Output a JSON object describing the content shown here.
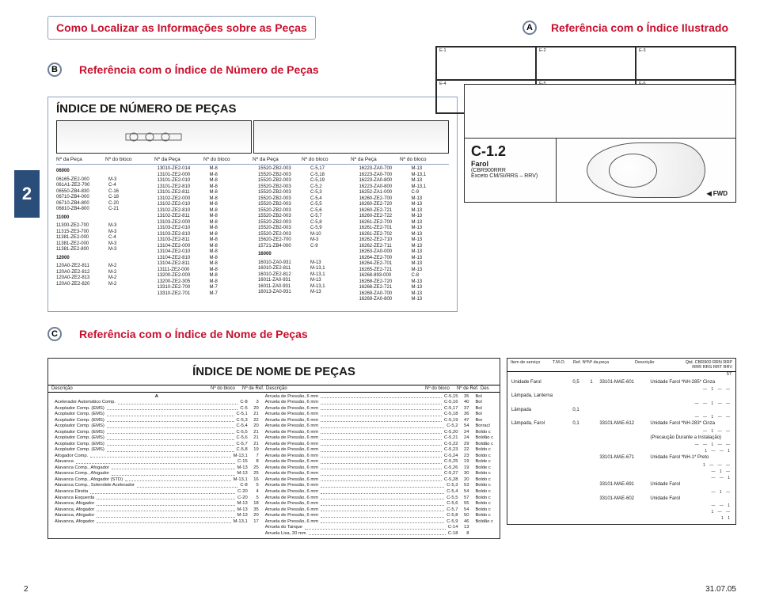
{
  "labels": {
    "A": "A",
    "B": "B",
    "C": "C"
  },
  "titles": {
    "main": "Como Localizar as Informações sobre as Peças",
    "A": "Referência com o Índice Ilustrado",
    "B": "Referência com o Índice de Número de Peças",
    "C": "Referência com o Índice de Nome de Peças",
    "partnum": "ÍNDICE DE NÚMERO DE PEÇAS",
    "nameidx": "ÍNDICE DE NOME DE PEÇAS"
  },
  "col_hdr": [
    "Nº da Peça",
    "Nº do bloco",
    "Nº da Peça",
    "Nº do bloco",
    "Nº da Peça",
    "Nº do bloco",
    "Nº da Peça",
    "Nº do bloco"
  ],
  "topgrid": [
    "E-1",
    "E-2",
    "E-3",
    "E-4",
    "E-5",
    "E-6"
  ],
  "pn": {
    "c1": [
      {
        "h": "06000"
      },
      {
        "p": "06165-ZE2-000",
        "b": "M-3"
      },
      {
        "p": "061A1-ZE2-700",
        "b": "C-4"
      },
      {
        "p": "06550-ZB4-830",
        "b": "C-16"
      },
      {
        "p": "06710-ZB4-000",
        "b": "C-18"
      },
      {
        "p": "06710-ZB4-800",
        "b": "C-20"
      },
      {
        "p": "06810-ZB4-800",
        "b": "C-21"
      },
      {
        "h": "11000"
      },
      {
        "p": "11300-ZE2-700",
        "b": "M-3"
      },
      {
        "p": "11315-ZE3-700",
        "b": "M-3"
      },
      {
        "p": "11381-ZE2-000",
        "b": "C-4"
      },
      {
        "p": "11381-ZE2-000",
        "b": "M-3"
      },
      {
        "p": "11381-ZE2-800",
        "b": "M-3"
      },
      {
        "h": "12000"
      },
      {
        "p": "120A0-ZE2-811",
        "b": "M-2"
      },
      {
        "p": "120A0-ZE2-812",
        "b": "M-2"
      },
      {
        "p": "120A0-ZE2-813",
        "b": "M-2"
      },
      {
        "p": "120A0-ZE2-820",
        "b": "M-2"
      }
    ],
    "c2": [
      {
        "p": "13010-ZE2-014",
        "b": "M-8"
      },
      {
        "p": "13101-ZE2-000",
        "b": "M-8"
      },
      {
        "p": "13101-ZE2-010",
        "b": "M-8"
      },
      {
        "p": "13101-ZE2-810",
        "b": "M-8"
      },
      {
        "p": "13101-ZE2-811",
        "b": "M-8"
      },
      {
        "p": "13102-ZE2-000",
        "b": "M-8"
      },
      {
        "p": "13102-ZE2-010",
        "b": "M-8"
      },
      {
        "p": "13102-ZE2-810",
        "b": "M-8"
      },
      {
        "p": "13102-ZE2-811",
        "b": "M-8"
      },
      {
        "p": "13103-ZE2-000",
        "b": "M-8"
      },
      {
        "p": "13103-ZE2-010",
        "b": "M-8"
      },
      {
        "p": "13103-ZE2-810",
        "b": "M-8"
      },
      {
        "p": "13103-ZE2-811",
        "b": "M-8"
      },
      {
        "p": "13104-ZE2-000",
        "b": "M-8"
      },
      {
        "p": "13104-ZE2-010",
        "b": "M-8"
      },
      {
        "p": "13104-ZE2-810",
        "b": "M-8"
      },
      {
        "p": "13104-ZE2-811",
        "b": "M-8"
      },
      {
        "p": "13111-ZE2-000",
        "b": "M-8"
      },
      {
        "p": "13200-ZE2-000",
        "b": "M-8"
      },
      {
        "p": "13200-ZE2-305",
        "b": "M-8"
      },
      {
        "p": "13310-ZE2-700",
        "b": "M-7"
      },
      {
        "p": "13310-ZE2-701",
        "b": "M-7"
      }
    ],
    "c3": [
      {
        "p": "15520-ZB2-003",
        "b": "C-5,17"
      },
      {
        "p": "15520-ZB2-003",
        "b": "C-5,18"
      },
      {
        "p": "15520-ZB2-003",
        "b": "C-5,19"
      },
      {
        "p": "15520-ZB2-003",
        "b": "C-5,2"
      },
      {
        "p": "15520-ZB2-003",
        "b": "C-5,3"
      },
      {
        "p": "15520-ZB2-003",
        "b": "C-5,4"
      },
      {
        "p": "15520-ZB2-003",
        "b": "C-5,5"
      },
      {
        "p": "15520-ZB2-003",
        "b": "C-5,6"
      },
      {
        "p": "15520-ZB2-003",
        "b": "C-5,7"
      },
      {
        "p": "15520-ZB2-003",
        "b": "C-5,8"
      },
      {
        "p": "15520-ZB2-003",
        "b": "C-5,9"
      },
      {
        "p": "15520-ZE2-003",
        "b": "M-10"
      },
      {
        "p": "15620-ZE2-700",
        "b": "M-3"
      },
      {
        "p": "15721-ZB4-000",
        "b": "C-9"
      },
      {
        "h": "16000"
      },
      {
        "p": "16010-ZA0-931",
        "b": "M-13"
      },
      {
        "p": "16010-ZE2-811",
        "b": "M-13,1"
      },
      {
        "p": "16010-ZE2-812",
        "b": "M-13,1"
      },
      {
        "p": "16011-ZA0-931",
        "b": "M-13"
      },
      {
        "p": "16011-ZA0-931",
        "b": "M-13,1"
      },
      {
        "p": "16013-ZA0-931",
        "b": "M-13"
      }
    ],
    "c4": [
      {
        "p": "16223-ZA0-700",
        "b": "M-13"
      },
      {
        "p": "16223-ZA0-700",
        "b": "M-13,1"
      },
      {
        "p": "16223-ZA0-800",
        "b": "M-13"
      },
      {
        "p": "16223-ZA0-800",
        "b": "M-13,1"
      },
      {
        "p": "16252-ZA1-000",
        "b": "C-9"
      },
      {
        "p": "16260-ZE2-700",
        "b": "M-13"
      },
      {
        "p": "16260-ZE2-720",
        "b": "M-13"
      },
      {
        "p": "16260-ZE2-721",
        "b": "M-13"
      },
      {
        "p": "16260-ZE2-722",
        "b": "M-13"
      },
      {
        "p": "16261-ZE2-700",
        "b": "M-13"
      },
      {
        "p": "16261-ZE2-701",
        "b": "M-13"
      },
      {
        "p": "16261-ZE2-702",
        "b": "M-13"
      },
      {
        "p": "16262-ZE2-710",
        "b": "M-13"
      },
      {
        "p": "16262-ZE2-711",
        "b": "M-13"
      },
      {
        "p": "16263-ZA0-000",
        "b": "M-13"
      },
      {
        "p": "16264-ZE2-700",
        "b": "M-13"
      },
      {
        "p": "16264-ZE2-701",
        "b": "M-13"
      },
      {
        "p": "16265-ZE2-721",
        "b": "M-13"
      },
      {
        "p": "16268-893-000",
        "b": "C-8"
      },
      {
        "p": "16268-ZE2-720",
        "b": "M-13"
      },
      {
        "p": "16268-ZE2-721",
        "b": "M-13"
      },
      {
        "p": "16269-ZA0-700",
        "b": "M-13"
      },
      {
        "p": "16269-ZA0-800",
        "b": "M-13"
      }
    ]
  },
  "c12": {
    "code": "C-1.2",
    "name": "Farol",
    "sub": "(CBR900RRR",
    "note": "Exceto CM/SI/RRS – RRV)"
  },
  "name_hdr": [
    "Descrição",
    "Nº do bloco",
    "Nº de Ref.",
    "Descrição",
    "Nº do bloco",
    "Nº de Ref.",
    "Des"
  ],
  "names": {
    "A": [
      {
        "d": "Acelerador Automático Comp.",
        "b": "C-8",
        "r": "3"
      },
      {
        "d": "Acoplador Comp. (EMS)",
        "b": "C-5",
        "r": "20"
      },
      {
        "d": "Acoplador Comp. (EMS)",
        "b": "C-5,1",
        "r": "21"
      },
      {
        "d": "Acoplador Comp. (EMS)",
        "b": "C-5,3",
        "r": "22"
      },
      {
        "d": "Acoplador Comp. (EMS)",
        "b": "C-5,4",
        "r": "20"
      },
      {
        "d": "Acoplador Comp. (EMS)",
        "b": "C-5,5",
        "r": "21"
      },
      {
        "d": "Acoplador Comp. (EMS)",
        "b": "C-5,6",
        "r": "21"
      },
      {
        "d": "Acoplador Comp. (EMS)",
        "b": "C-5,7",
        "r": "21"
      },
      {
        "d": "Acoplador Comp. (EMS)",
        "b": "C-5,8",
        "r": "19"
      },
      {
        "d": "Afogador Comp.",
        "b": "M-13,1",
        "r": "7"
      },
      {
        "d": "Alavanca",
        "b": "C-15",
        "r": "8"
      },
      {
        "d": "Alavanca Comp., Afogador",
        "b": "M-13",
        "r": "25"
      },
      {
        "d": "Alavanca Comp., Afogador",
        "b": "M-13",
        "r": "25"
      },
      {
        "d": "Alavanca Comp., Afogador (STD)",
        "b": "M-13,1",
        "r": "16"
      },
      {
        "d": "Alavanca Comp., Solenóide Acelerador",
        "b": "C-8",
        "r": "5"
      },
      {
        "d": "Alavanca Direita",
        "b": "C-20",
        "r": "4"
      },
      {
        "d": "Alavanca Esquerda",
        "b": "C-20",
        "r": "5"
      },
      {
        "d": "Alavanca, Afogador",
        "b": "M-13",
        "r": "18"
      },
      {
        "d": "Alavanca, Afogador",
        "b": "M-13",
        "r": "35"
      },
      {
        "d": "Alavanca, Afogador",
        "b": "M-13",
        "r": "20"
      },
      {
        "d": "Alavanca, Afogador",
        "b": "M-13,1",
        "r": "17"
      }
    ],
    "B": [
      {
        "d": "Arruela de Pressão, 6 mm",
        "b": "C-5,15",
        "r": "35"
      },
      {
        "d": "Arruela de Pressão, 6 mm",
        "b": "C-5,16",
        "r": "40"
      },
      {
        "d": "Arruela de Pressão, 6 mm",
        "b": "C-5,17",
        "r": "37"
      },
      {
        "d": "Arruela de Pressão, 6 mm",
        "b": "C-5,18",
        "r": "36"
      },
      {
        "d": "Arruela de Pressão, 6 mm",
        "b": "C-5,19",
        "r": "47"
      },
      {
        "d": "Arruela de Pressão, 6 mm",
        "b": "C-5,2",
        "r": "54"
      },
      {
        "d": "Arruela de Pressão, 6 mm",
        "b": "C-5,20",
        "r": "24"
      },
      {
        "d": "Arruela de Pressão, 6 mm",
        "b": "C-5,21",
        "r": "24"
      },
      {
        "d": "Arruela de Pressão, 6 mm",
        "b": "C-5,22",
        "r": "29"
      },
      {
        "d": "Arruela de Pressão, 6 mm",
        "b": "C-5,23",
        "r": "22"
      },
      {
        "d": "Arruela de Pressão, 6 mm",
        "b": "C-5,24",
        "r": "23"
      },
      {
        "d": "Arruela de Pressão, 6 mm",
        "b": "C-5,25",
        "r": "19"
      },
      {
        "d": "Arruela de Pressão, 6 mm",
        "b": "C-5,26",
        "r": "19"
      },
      {
        "d": "Arruela de Pressão, 6 mm",
        "b": "C-5,27",
        "r": "30"
      },
      {
        "d": "Arruela de Pressão, 6 mm",
        "b": "C-5,28",
        "r": "20"
      },
      {
        "d": "Arruela de Pressão, 6 mm",
        "b": "C-5,3",
        "r": "53"
      },
      {
        "d": "Arruela de Pressão, 6 mm",
        "b": "C-5,4",
        "r": "54"
      },
      {
        "d": "Arruela de Pressão, 6 mm",
        "b": "C-5,5",
        "r": "57"
      },
      {
        "d": "Arruela de Pressão, 6 mm",
        "b": "C-5,6",
        "r": "55"
      },
      {
        "d": "Arruela de Pressão, 6 mm",
        "b": "C-5,7",
        "r": "54"
      },
      {
        "d": "Arruela de Pressão, 6 mm",
        "b": "C-5,8",
        "r": "50"
      },
      {
        "d": "Arruela de Pressão, 6 mm",
        "b": "C-5,9",
        "r": "46"
      },
      {
        "d": "Arruela do Tanque",
        "b": "C-14",
        "r": "13"
      },
      {
        "d": "Arruela Lisa, 20 mm",
        "b": "C-18",
        "r": "8"
      }
    ],
    "C": [
      "Bol",
      "Bol",
      "Bol",
      "Bol",
      "Bor",
      "Borracl",
      "Boldo c",
      "Boldão c",
      "Boldão c",
      "Boldo c",
      "Boldo c",
      "Bolde c",
      "Bolde c",
      "Boldo c",
      "Boldo c",
      "Boldo c",
      "Boldo c",
      "Boldo c",
      "Boldo c",
      "Boldo c",
      "Boldo c",
      "Boldão c"
    ]
  },
  "serv": {
    "hdr": [
      "Item de serviço",
      "T.M.O.",
      "Ref. Nº",
      "Nº da peça",
      "Descrição",
      "Qtd. CBR900 RRN RRP RRR RRS RRT RRV",
      "57"
    ],
    "rows": [
      {
        "i": "Unidade Farol",
        "t": "0,5",
        "q": "1",
        "p": "33101-MAE-601",
        "d": "Unidade Farol *NH-285* Cinza",
        "tail": "— 1 — —"
      },
      {
        "i": "Lâmpada, Lanterna",
        "t": "",
        "q": "",
        "p": "",
        "d": "",
        "tail": "— — 1 — —"
      },
      {
        "i": "Lâmpada",
        "t": "0,1",
        "q": "",
        "p": "",
        "d": "",
        "tail": "— — 1 — —"
      },
      {
        "i": "Lâmpada, Farol",
        "t": "0,1",
        "q": "",
        "p": "33101-MAE-612",
        "d": "Unidade Farol *NH-283* Cinza",
        "tail": "— 1 — —"
      },
      {
        "i": "",
        "t": "",
        "q": "",
        "p": "",
        "d": "(Precaução Durante a Instalação)",
        "tail": ""
      },
      {
        "i": "",
        "t": "",
        "q": "",
        "p": "",
        "d": "",
        "tail": "— — 1 — —"
      },
      {
        "i": "",
        "t": "",
        "q": "",
        "p": "",
        "d": "",
        "tail": "1 — — 1"
      },
      {
        "i": "",
        "t": "",
        "q": "",
        "p": "33101-MAE-671",
        "d": "Unidade Farol *NH-1* Preto",
        "tail": "1 — — —"
      },
      {
        "i": "",
        "t": "",
        "q": "",
        "p": "",
        "d": "",
        "tail": "— 1 —"
      },
      {
        "i": "",
        "t": "",
        "q": "",
        "p": "",
        "d": "",
        "tail": "— — 1"
      },
      {
        "i": "",
        "t": "",
        "q": "",
        "p": "33101-MAE-691",
        "d": "Unidade Farol",
        "tail": "— 1 —"
      },
      {
        "i": "",
        "t": "",
        "q": "",
        "p": "33101-MAE-602",
        "d": "Unidade Farol",
        "tail": "— — 1"
      },
      {
        "i": "",
        "t": "",
        "q": "",
        "p": "",
        "d": "",
        "tail": "1 — —"
      },
      {
        "i": "",
        "t": "",
        "q": "",
        "p": "",
        "d": "",
        "tail": "1   1"
      }
    ]
  },
  "footer": {
    "page": "2",
    "date": "31.07.05"
  },
  "fwd": "FWD"
}
